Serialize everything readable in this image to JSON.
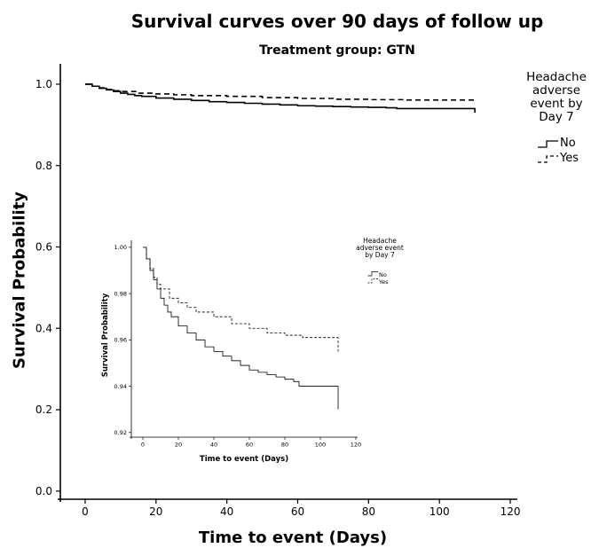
{
  "chart_data": [
    {
      "type": "line",
      "title": "Survival curves over 90 days of follow up",
      "subtitle": "Treatment group: GTN",
      "xlabel": "Time to event (Days)",
      "ylabel": "Survival Probability",
      "xlim": [
        -5,
        122
      ],
      "ylim": [
        -0.02,
        1.05
      ],
      "x_ticks": [
        0,
        20,
        40,
        60,
        80,
        100,
        120
      ],
      "y_ticks": [
        0.0,
        0.2,
        0.4,
        0.6,
        0.8,
        1.0
      ],
      "x_tick_labels": [
        "0",
        "20",
        "40",
        "60",
        "80",
        "100",
        "120"
      ],
      "y_tick_labels": [
        "0.0",
        "0.2",
        "0.4",
        "0.6",
        "0.8",
        "1.0"
      ],
      "grid": false,
      "legend": {
        "title": "Headache adverse event by Day 7",
        "position": "right"
      },
      "series": [
        {
          "name": "No",
          "style": "solid",
          "x": [
            0,
            2,
            4,
            6,
            8,
            10,
            12,
            14,
            16,
            20,
            25,
            30,
            35,
            40,
            45,
            50,
            55,
            60,
            65,
            70,
            75,
            80,
            85,
            88,
            95,
            110,
            110
          ],
          "y": [
            1.0,
            0.995,
            0.99,
            0.986,
            0.982,
            0.978,
            0.975,
            0.972,
            0.97,
            0.966,
            0.963,
            0.96,
            0.957,
            0.955,
            0.953,
            0.951,
            0.949,
            0.947,
            0.946,
            0.945,
            0.944,
            0.943,
            0.942,
            0.94,
            0.94,
            0.94,
            0.93
          ]
        },
        {
          "name": "Yes",
          "style": "dashed",
          "x": [
            0,
            2,
            4,
            6,
            8,
            10,
            15,
            20,
            25,
            30,
            40,
            50,
            60,
            70,
            80,
            90,
            110,
            110
          ],
          "y": [
            1.0,
            0.995,
            0.991,
            0.987,
            0.984,
            0.982,
            0.978,
            0.976,
            0.974,
            0.972,
            0.97,
            0.967,
            0.965,
            0.963,
            0.962,
            0.961,
            0.961,
            0.955
          ]
        }
      ]
    },
    {
      "type": "line",
      "xlabel": "Time to event (Days)",
      "ylabel": "Survival Probability",
      "xlim": [
        -3,
        121
      ],
      "ylim": [
        0.918,
        1.003
      ],
      "x_ticks": [
        0,
        20,
        40,
        60,
        80,
        100,
        120
      ],
      "y_ticks": [
        0.92,
        0.94,
        0.96,
        0.98,
        1.0
      ],
      "x_tick_labels": [
        "0",
        "20",
        "40",
        "60",
        "80",
        "100",
        "120"
      ],
      "y_tick_labels": [
        "0.92",
        "0.94",
        "0.96",
        "0.98",
        "1.00"
      ],
      "grid": false,
      "legend": {
        "title": "Headache adverse event by Day 7",
        "position": "right"
      },
      "series": [
        {
          "name": "No",
          "style": "solid",
          "x": [
            0,
            2,
            4,
            6,
            8,
            10,
            12,
            14,
            16,
            20,
            25,
            30,
            35,
            40,
            45,
            50,
            55,
            60,
            65,
            70,
            75,
            80,
            85,
            88,
            95,
            110,
            110
          ],
          "y": [
            1.0,
            0.995,
            0.99,
            0.986,
            0.982,
            0.978,
            0.975,
            0.972,
            0.97,
            0.966,
            0.963,
            0.96,
            0.957,
            0.955,
            0.953,
            0.951,
            0.949,
            0.947,
            0.946,
            0.945,
            0.944,
            0.943,
            0.942,
            0.94,
            0.94,
            0.94,
            0.93
          ]
        },
        {
          "name": "Yes",
          "style": "dashed",
          "x": [
            0,
            2,
            4,
            6,
            8,
            10,
            15,
            20,
            25,
            30,
            40,
            50,
            60,
            70,
            80,
            90,
            110,
            110
          ],
          "y": [
            1.0,
            0.995,
            0.991,
            0.987,
            0.984,
            0.982,
            0.978,
            0.976,
            0.974,
            0.972,
            0.97,
            0.967,
            0.965,
            0.963,
            0.962,
            0.961,
            0.961,
            0.955
          ]
        }
      ]
    }
  ]
}
